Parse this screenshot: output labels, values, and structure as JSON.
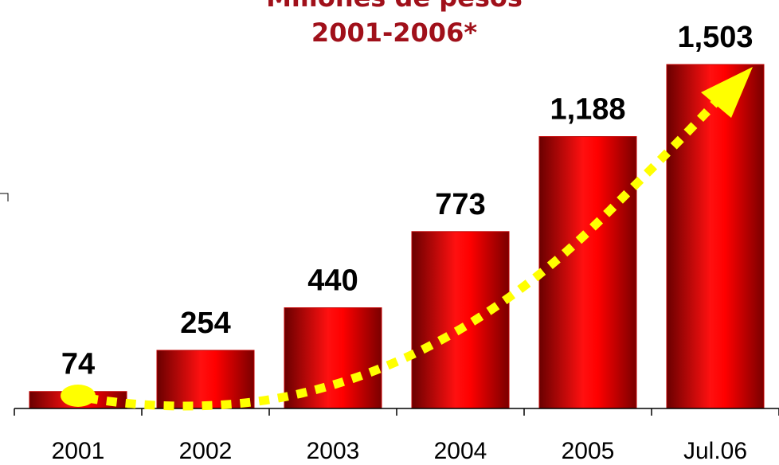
{
  "chart_data": {
    "type": "bar",
    "title": "Millones de pesos",
    "subtitle": "2001-2006*",
    "categories": [
      "2001",
      "2002",
      "2003",
      "2004",
      "2005",
      "Jul.06"
    ],
    "values": [
      74,
      254,
      440,
      773,
      1188,
      1503
    ],
    "value_labels": [
      "74",
      "254",
      "440",
      "773",
      "1,188",
      "1,503"
    ],
    "color": "#ff0000"
  }
}
